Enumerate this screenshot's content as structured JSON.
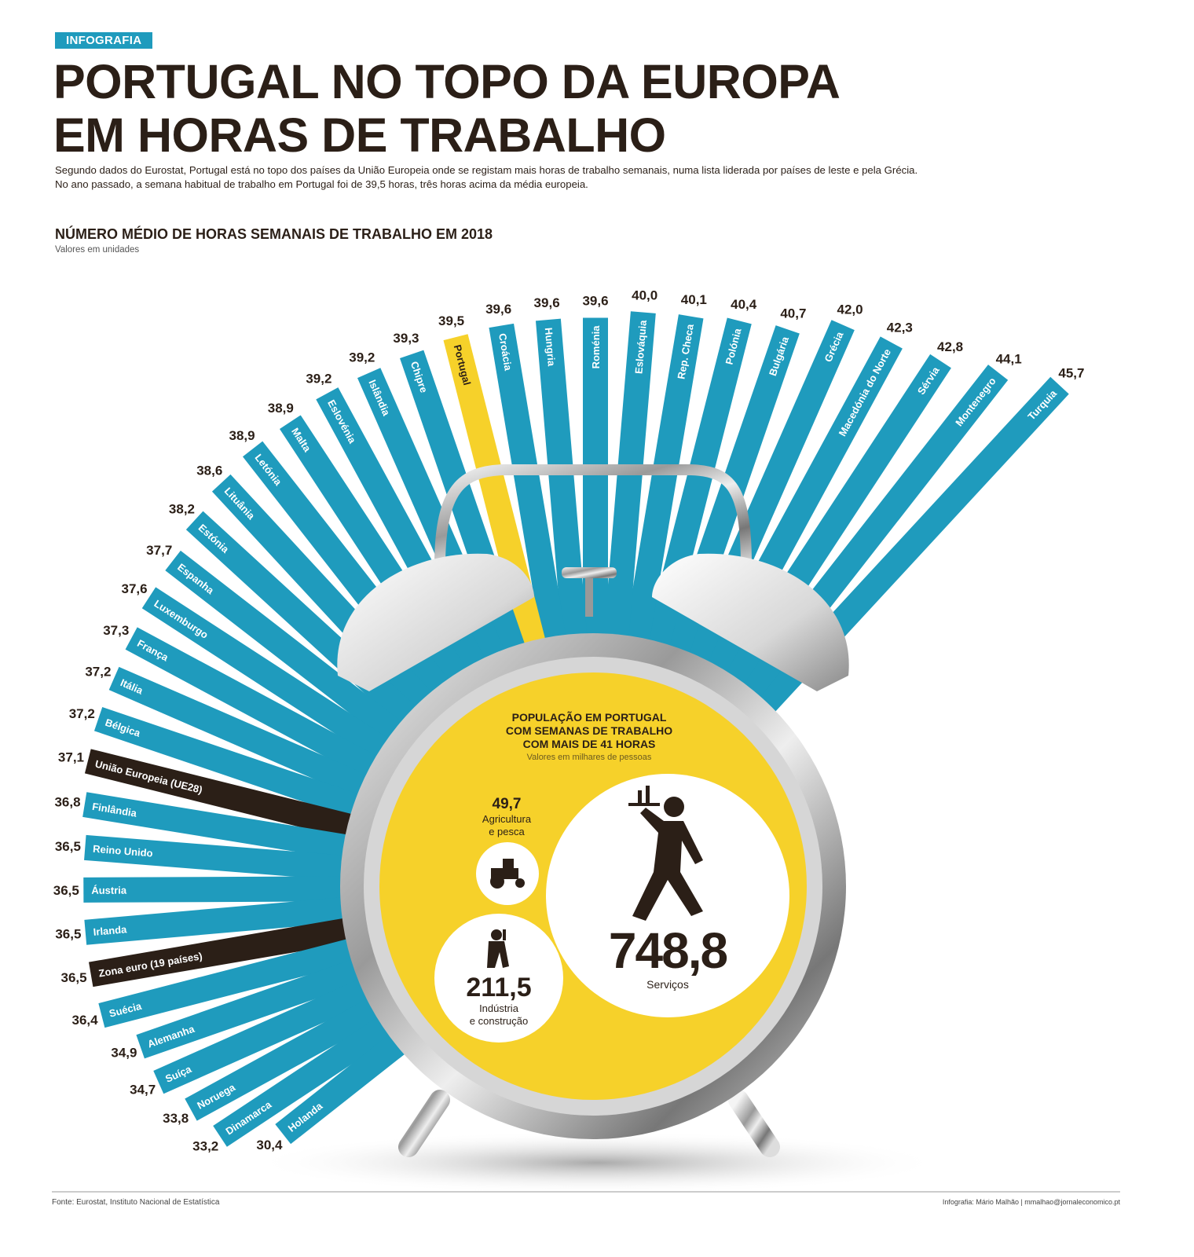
{
  "header": {
    "tag": "INFOGRAFIA",
    "title_line1": "PORTUGAL NO TOPO DA EUROPA",
    "title_line2": "EM HORAS DE TRABALHO",
    "lede_line1": "Segundo dados do Eurostat, Portugal está no topo dos países da União Europeia onde se registam mais horas de trabalho semanais, numa lista liderada por países de leste e pela Grécia.",
    "lede_line2": "No ano passado, a semana habitual de trabalho em Portugal foi de 39,5 horas, três horas acima da média europeia."
  },
  "chart_data": {
    "type": "bar",
    "layout": "radial",
    "title": "NÚMERO MÉDIO DE HORAS SEMANAIS DE TRABALHO EM 2018",
    "subtitle": "Valores em unidades",
    "categories": [
      "Turquia",
      "Montenegro",
      "Sérvia",
      "Macedónia do Norte",
      "Grécia",
      "Bulgária",
      "Polónia",
      "Rep. Checa",
      "Eslováquia",
      "Roménia",
      "Hungria",
      "Croácia",
      "Portugal",
      "Chipre",
      "Islândia",
      "Eslovénia",
      "Malta",
      "Letónia",
      "Lituânia",
      "Estónia",
      "Espanha",
      "Luxemburgo",
      "França",
      "Itália",
      "Bélgica",
      "União Europeia (UE28)",
      "Finlândia",
      "Reino Unido",
      "Áustria",
      "Irlanda",
      "Zona euro (19 países)",
      "Suécia",
      "Alemanha",
      "Suíça",
      "Noruega",
      "Dinamarca",
      "Holanda"
    ],
    "values": [
      45.7,
      44.1,
      42.8,
      42.3,
      42.0,
      40.7,
      40.4,
      40.1,
      40.0,
      39.6,
      39.6,
      39.6,
      39.5,
      39.3,
      39.2,
      39.2,
      38.9,
      38.9,
      38.6,
      38.2,
      37.7,
      37.6,
      37.3,
      37.2,
      37.2,
      37.1,
      36.8,
      36.5,
      36.5,
      36.5,
      36.5,
      36.4,
      34.9,
      34.7,
      33.8,
      33.2,
      30.4
    ],
    "value_labels": [
      "45,7",
      "44,1",
      "42,8",
      "42,3",
      "42,0",
      "40,7",
      "40,4",
      "40,1",
      "40,0",
      "39,6",
      "39,6",
      "39,6",
      "39,5",
      "39,3",
      "39,2",
      "39,2",
      "38,9",
      "38,9",
      "38,6",
      "38,2",
      "37,7",
      "37,6",
      "37,3",
      "37,2",
      "37,2",
      "37,1",
      "36,8",
      "36,5",
      "36,5",
      "36,5",
      "36,5",
      "36,4",
      "34,9",
      "34,7",
      "33,8",
      "33,2",
      "30,4"
    ],
    "highlight": {
      "Portugal": "#f6d12a",
      "União Europeia (UE28)": "#2b1f17",
      "Zona euro (19 países)": "#2b1f17"
    },
    "colors": {
      "bar": "#1f9bbd",
      "highlight": "#f6d12a",
      "aggregate": "#2b1f17"
    }
  },
  "inset": {
    "title_line1": "POPULAÇÃO EM PORTUGAL",
    "title_line2": "COM SEMANAS DE TRABALHO",
    "title_line3": "COM MAIS DE 41 HORAS",
    "unit": "Valores em milhares de pessoas",
    "items": [
      {
        "value": "49,7",
        "label1": "Agricultura",
        "label2": "e pesca",
        "icon": "tractor-icon"
      },
      {
        "value": "211,5",
        "label1": "Indústria",
        "label2": "e construção",
        "icon": "worker-icon"
      },
      {
        "value": "748,8",
        "label1": "Serviços",
        "icon": "waiter-icon"
      }
    ]
  },
  "footer": {
    "source": "Fonte: Eurostat, Instituto Nacional de Estatística",
    "credit": "Infografia: Mário Malhão  |  mmalhao@jornaleconomico.pt"
  }
}
